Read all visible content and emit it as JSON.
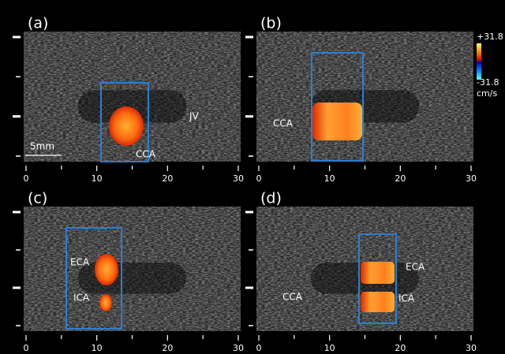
{
  "panels": [
    {
      "label": "(a)",
      "annotations": [
        "JV",
        "CCA"
      ],
      "xticks": [
        "0",
        "10",
        "20",
        "30"
      ]
    },
    {
      "label": "(b)",
      "annotations": [
        "CCA"
      ],
      "xticks": [
        "0",
        "10",
        "20",
        "30"
      ]
    },
    {
      "label": "(c)",
      "annotations": [
        "ECA",
        "ICA"
      ],
      "xticks": [
        "0",
        "10",
        "20",
        "30"
      ]
    },
    {
      "label": "(d)",
      "annotations": [
        "ECA",
        "ICA",
        "CCA"
      ],
      "xticks": [
        "0",
        "10",
        "20",
        "30"
      ]
    }
  ],
  "scale_bar": "5mm",
  "colorbar": {
    "max": "+31.8",
    "min": "-31.8",
    "unit": "cm/s"
  }
}
